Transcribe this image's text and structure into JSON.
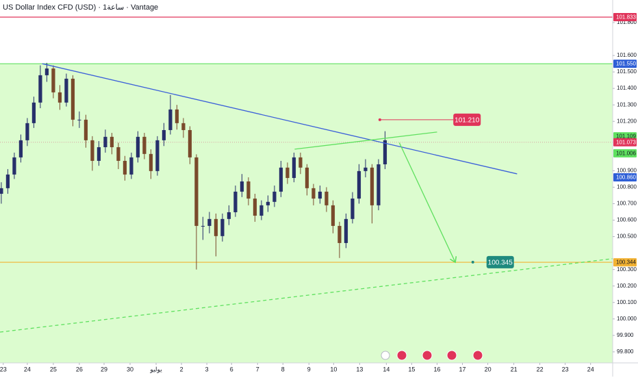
{
  "chart_data": {
    "type": "candlestick",
    "title": "US Dollar Index CFD (USD) · 1ساعة · Vantage",
    "up_color": "#27306b",
    "down_color": "#7a4a2c",
    "xlim": [
      -0.2,
      94
    ],
    "ylim": [
      99.733,
      101.937
    ],
    "xticks": [
      {
        "value": 0.3,
        "label": "23"
      },
      {
        "value": 4,
        "label": "24"
      },
      {
        "value": 8,
        "label": "25"
      },
      {
        "value": 12,
        "label": "26"
      },
      {
        "value": 15.8,
        "label": "29"
      },
      {
        "value": 19.8,
        "label": "30"
      },
      {
        "value": 23.8,
        "label": "يوليو"
      },
      {
        "value": 27.7,
        "label": "2"
      },
      {
        "value": 31.6,
        "label": "3"
      },
      {
        "value": 35.4,
        "label": "6"
      },
      {
        "value": 39.4,
        "label": "7"
      },
      {
        "value": 43.3,
        "label": "8"
      },
      {
        "value": 47.3,
        "label": "9"
      },
      {
        "value": 51.1,
        "label": "10"
      },
      {
        "value": 55.1,
        "label": "13"
      },
      {
        "value": 59.2,
        "label": "14"
      },
      {
        "value": 63.1,
        "label": "15"
      },
      {
        "value": 67,
        "label": "16"
      },
      {
        "value": 70.9,
        "label": "17"
      },
      {
        "value": 74.8,
        "label": "20"
      },
      {
        "value": 78.8,
        "label": "21"
      },
      {
        "value": 82.8,
        "label": "22"
      },
      {
        "value": 86.7,
        "label": "23"
      },
      {
        "value": 90.6,
        "label": "24"
      }
    ],
    "yticks": [
      {
        "value": 99.8,
        "label": "99.800"
      },
      {
        "value": 99.9,
        "label": "99.900"
      },
      {
        "value": 100.0,
        "label": "100.000"
      },
      {
        "value": 100.1,
        "label": "100.100"
      },
      {
        "value": 100.2,
        "label": "100.200"
      },
      {
        "value": 100.3,
        "label": "100.300"
      },
      {
        "value": 100.5,
        "label": "100.500"
      },
      {
        "value": 100.6,
        "label": "100.600"
      },
      {
        "value": 100.7,
        "label": "100.700"
      },
      {
        "value": 100.8,
        "label": "100.800"
      },
      {
        "value": 100.9,
        "label": "100.900"
      },
      {
        "value": 101.2,
        "label": "101.200"
      },
      {
        "value": 101.3,
        "label": "101.300"
      },
      {
        "value": 101.4,
        "label": "101.400"
      },
      {
        "value": 101.5,
        "label": "101.500"
      },
      {
        "value": 101.6,
        "label": "101.600"
      },
      {
        "value": 101.8,
        "label": "101.800"
      }
    ],
    "open": [
      100.76,
      100.794,
      100.877,
      100.981,
      101.085,
      101.189,
      101.314,
      101.48,
      101.521,
      101.376,
      101.314,
      101.459,
      101.21,
      101.21,
      101.085,
      100.96,
      101.043,
      101.106,
      101.043,
      100.96,
      100.877,
      100.981,
      101.106,
      101.002,
      100.898,
      101.085,
      101.147,
      101.272,
      101.189,
      101.147,
      100.981,
      100.565,
      100.565,
      100.607,
      100.503,
      100.607,
      100.648,
      100.773,
      100.835,
      100.731,
      100.627,
      100.69,
      100.711,
      100.773,
      100.919,
      100.856,
      100.981,
      100.919,
      100.794,
      100.731,
      100.773,
      100.69,
      100.565,
      100.461,
      100.607,
      100.731,
      100.898,
      100.919,
      100.69,
      100.939
    ],
    "high": [
      100.83,
      100.91,
      101.01,
      101.12,
      101.22,
      101.35,
      101.54,
      101.555,
      101.54,
      101.42,
      101.49,
      101.48,
      101.26,
      101.24,
      101.11,
      101.08,
      101.15,
      101.13,
      101.07,
      100.99,
      101.01,
      101.14,
      101.13,
      101.03,
      101.11,
      101.19,
      101.36,
      101.3,
      101.22,
      101.17,
      101.0,
      100.62,
      100.65,
      100.64,
      100.64,
      100.69,
      100.81,
      100.88,
      100.86,
      100.76,
      100.72,
      100.75,
      100.81,
      100.96,
      100.95,
      101.01,
      101.01,
      100.94,
      100.82,
      100.81,
      100.8,
      100.72,
      100.59,
      100.64,
      100.77,
      100.94,
      100.97,
      100.94,
      100.97,
      101.14
    ],
    "low": [
      100.7,
      100.76,
      100.85,
      100.95,
      101.05,
      101.16,
      101.28,
      101.44,
      101.34,
      101.27,
      101.29,
      101.17,
      101.16,
      101.04,
      100.9,
      100.93,
      101.01,
      101.0,
      100.91,
      100.84,
      100.85,
      100.95,
      100.97,
      100.85,
      100.87,
      101.05,
      101.12,
      101.15,
      101.1,
      100.94,
      100.3,
      100.48,
      100.52,
      100.38,
      100.47,
      100.57,
      100.62,
      100.74,
      100.69,
      100.59,
      100.6,
      100.65,
      100.68,
      100.74,
      100.82,
      100.83,
      100.88,
      100.75,
      100.69,
      100.7,
      100.65,
      100.52,
      100.37,
      100.43,
      100.58,
      100.7,
      100.86,
      100.58,
      100.66,
      100.91
    ],
    "close": [
      100.794,
      100.877,
      100.981,
      101.085,
      101.189,
      101.314,
      101.48,
      101.521,
      101.376,
      101.314,
      101.459,
      101.21,
      101.21,
      101.085,
      100.96,
      101.043,
      101.106,
      101.043,
      100.96,
      100.877,
      100.981,
      101.106,
      101.002,
      100.898,
      101.085,
      101.147,
      101.272,
      101.189,
      101.147,
      100.981,
      100.565,
      100.565,
      100.607,
      100.503,
      100.607,
      100.648,
      100.773,
      100.835,
      100.731,
      100.627,
      100.69,
      100.711,
      100.773,
      100.919,
      100.856,
      100.981,
      100.919,
      100.794,
      100.731,
      100.773,
      100.69,
      100.565,
      100.461,
      100.607,
      100.731,
      100.898,
      100.919,
      100.69,
      100.939,
      101.085
    ],
    "zone": {
      "top": 101.55,
      "color": "#dcfccf"
    },
    "levels": [
      {
        "value": 101.833,
        "color": "#e0345a"
      },
      {
        "value": 101.55,
        "color": "#5fe05f"
      },
      {
        "value": 100.344,
        "color": "#f2b233"
      },
      {
        "value": 101.073,
        "color": "#d9a0a0"
      }
    ],
    "trendlines": [
      {
        "x": [
          6.3,
          79.3
        ],
        "y": [
          101.55,
          100.881
        ],
        "color": "#3b5fd9",
        "dashed": false
      },
      {
        "x": [
          45.1,
          67
        ],
        "y": [
          101.031,
          101.135
        ],
        "color": "#5fe05f",
        "dashed": false
      },
      {
        "x": [
          -0.2,
          94
        ],
        "y": [
          99.92,
          100.366
        ],
        "color": "#5fe05f",
        "dashed": true
      },
      {
        "x": [
          61.2,
          69.8
        ],
        "y": [
          101.07,
          100.344
        ],
        "color": "#5fe05f",
        "dashed": false,
        "arrow": true
      }
    ],
    "markers": [
      {
        "x": [
          58.2,
          69.5
        ],
        "value": 101.21,
        "label": "101.210",
        "color": "#e0345a"
      },
      {
        "x": [
          72.5,
          72.5
        ],
        "value": 100.345,
        "label": "100.345",
        "color": "#1f8a7e"
      }
    ],
    "axis_badges": [
      {
        "value": 101.833,
        "label": "101.833",
        "color": "#e0345a"
      },
      {
        "value": 101.55,
        "label": "101.550",
        "color": "#2f5fd6"
      },
      {
        "value": 101.109,
        "label": "101.109",
        "color": "#5fe05f"
      },
      {
        "value": 101.073,
        "label": "101.073",
        "color": "#e0345a"
      },
      {
        "value": 101.006,
        "label": "101.006",
        "color": "#5fe05f"
      },
      {
        "value": 100.86,
        "label": "100.860",
        "color": "#2f5fd6"
      },
      {
        "value": 100.344,
        "label": "100.344",
        "color": "#f2b233"
      }
    ]
  }
}
